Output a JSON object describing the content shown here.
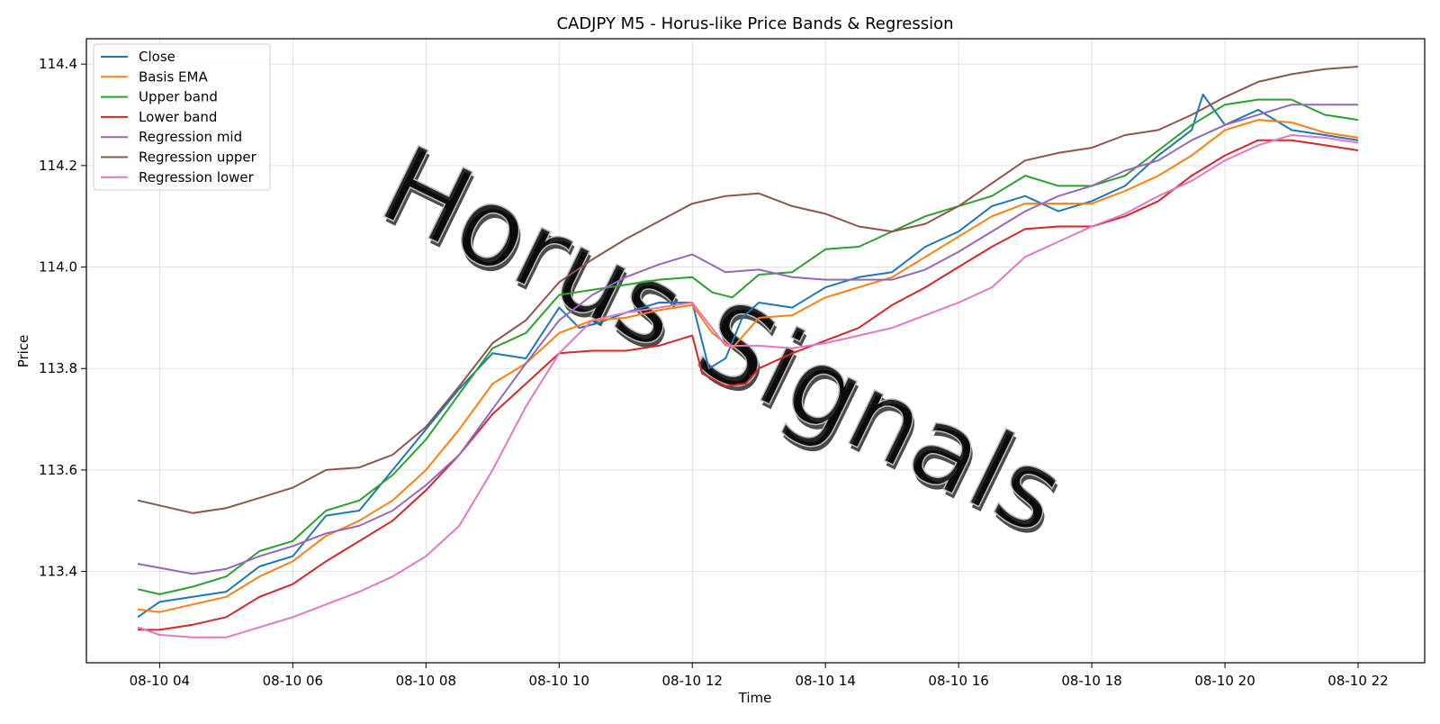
{
  "chart_data": {
    "type": "line",
    "title": "CADJPY M5 - Horus-like Price Bands & Regression",
    "xlabel": "Time",
    "ylabel": "Price",
    "watermark": "Horus Signals",
    "x_ticks": [
      "08-10 04",
      "08-10 06",
      "08-10 08",
      "08-10 10",
      "08-10 12",
      "08-10 14",
      "08-10 16",
      "08-10 18",
      "08-10 20",
      "08-10 22"
    ],
    "y_ticks": [
      "113.4",
      "113.6",
      "113.8",
      "114.0",
      "114.2",
      "114.4"
    ],
    "xlim_hours": [
      2.9,
      23.0
    ],
    "ylim": [
      113.22,
      114.45
    ],
    "grid": true,
    "legend_position": "upper-left",
    "series": [
      {
        "name": "Close",
        "color": "#1f77b4",
        "x": [
          3.67,
          4,
          4.5,
          5,
          5.5,
          6,
          6.5,
          7,
          7.5,
          8,
          8.5,
          9,
          9.5,
          10,
          10.3,
          10.6,
          11,
          11.5,
          12,
          12.25,
          12.5,
          12.75,
          13,
          13.5,
          14,
          14.5,
          15,
          15.5,
          16,
          16.5,
          17,
          17.5,
          18,
          18.5,
          19,
          19.5,
          19.67,
          20,
          20.5,
          21,
          21.5,
          22
        ],
        "y": [
          113.31,
          113.34,
          113.35,
          113.36,
          113.41,
          113.43,
          113.51,
          113.52,
          113.6,
          113.68,
          113.76,
          113.83,
          113.82,
          113.92,
          113.88,
          113.89,
          113.91,
          113.93,
          113.93,
          113.8,
          113.82,
          113.9,
          113.93,
          113.92,
          113.96,
          113.98,
          113.99,
          114.04,
          114.07,
          114.12,
          114.14,
          114.11,
          114.13,
          114.16,
          114.22,
          114.27,
          114.34,
          114.28,
          114.31,
          114.27,
          114.26,
          114.25
        ]
      },
      {
        "name": "Basis EMA",
        "color": "#ff7f0e",
        "x": [
          3.67,
          4,
          4.5,
          5,
          5.5,
          6,
          6.5,
          7,
          7.5,
          8,
          8.5,
          9,
          9.5,
          10,
          10.5,
          11,
          11.5,
          12,
          12.3,
          12.6,
          13,
          13.5,
          14,
          14.5,
          15,
          15.5,
          16,
          16.5,
          17,
          17.5,
          18,
          18.5,
          19,
          19.5,
          20,
          20.5,
          21,
          21.5,
          22
        ],
        "y": [
          113.325,
          113.32,
          113.335,
          113.35,
          113.39,
          113.42,
          113.47,
          113.5,
          113.54,
          113.6,
          113.68,
          113.77,
          113.81,
          113.87,
          113.895,
          113.9,
          113.915,
          113.925,
          113.87,
          113.84,
          113.9,
          113.905,
          113.94,
          113.96,
          113.98,
          114.02,
          114.06,
          114.1,
          114.125,
          114.125,
          114.125,
          114.15,
          114.18,
          114.22,
          114.27,
          114.29,
          114.285,
          114.265,
          114.255
        ]
      },
      {
        "name": "Upper band",
        "color": "#2ca02c",
        "x": [
          3.67,
          4,
          4.5,
          5,
          5.5,
          6,
          6.5,
          7,
          7.5,
          8,
          8.5,
          9,
          9.5,
          10,
          10.5,
          11,
          11.5,
          12,
          12.3,
          12.6,
          13,
          13.5,
          14,
          14.5,
          15,
          15.5,
          16,
          16.5,
          17,
          17.5,
          18,
          18.5,
          19,
          19.5,
          20,
          20.5,
          21,
          21.5,
          22
        ],
        "y": [
          113.365,
          113.355,
          113.37,
          113.39,
          113.44,
          113.46,
          113.52,
          113.54,
          113.59,
          113.66,
          113.75,
          113.84,
          113.87,
          113.945,
          113.955,
          113.965,
          113.975,
          113.98,
          113.95,
          113.94,
          113.985,
          113.99,
          114.035,
          114.04,
          114.07,
          114.1,
          114.12,
          114.14,
          114.18,
          114.16,
          114.16,
          114.18,
          114.23,
          114.28,
          114.32,
          114.33,
          114.33,
          114.3,
          114.29
        ]
      },
      {
        "name": "Lower band",
        "color": "#d62728",
        "x": [
          3.67,
          4,
          4.5,
          5,
          5.5,
          6,
          6.5,
          7,
          7.5,
          8,
          8.5,
          9,
          9.5,
          10,
          10.5,
          11,
          11.5,
          12,
          12.15,
          12.5,
          12.8,
          13,
          13.5,
          14,
          14.5,
          15,
          15.5,
          16,
          16.5,
          17,
          17.5,
          18,
          18.5,
          19,
          19.5,
          20,
          20.5,
          21,
          21.5,
          22
        ],
        "y": [
          113.285,
          113.285,
          113.295,
          113.31,
          113.35,
          113.375,
          113.42,
          113.46,
          113.5,
          113.56,
          113.63,
          113.71,
          113.77,
          113.83,
          113.835,
          113.835,
          113.845,
          113.865,
          113.79,
          113.765,
          113.77,
          113.8,
          113.83,
          113.855,
          113.88,
          113.925,
          113.96,
          114.0,
          114.04,
          114.075,
          114.08,
          114.08,
          114.1,
          114.13,
          114.18,
          114.22,
          114.25,
          114.25,
          114.24,
          114.23
        ]
      },
      {
        "name": "Regression mid",
        "color": "#9467bd",
        "x": [
          3.67,
          4.5,
          5,
          5.5,
          6,
          6.5,
          7,
          7.5,
          8,
          8.5,
          9,
          9.5,
          10,
          10.5,
          11,
          11.5,
          12,
          12.5,
          13,
          13.5,
          14,
          14.5,
          15,
          15.5,
          16,
          16.5,
          17,
          17.5,
          18,
          18.5,
          19,
          19.5,
          20,
          20.5,
          21,
          21.5,
          22
        ],
        "y": [
          113.415,
          113.395,
          113.405,
          113.43,
          113.45,
          113.475,
          113.49,
          113.52,
          113.57,
          113.63,
          113.72,
          113.81,
          113.895,
          113.945,
          113.98,
          114.005,
          114.025,
          113.99,
          113.995,
          113.98,
          113.975,
          113.975,
          113.975,
          113.995,
          114.03,
          114.07,
          114.11,
          114.14,
          114.16,
          114.19,
          114.21,
          114.25,
          114.28,
          114.3,
          114.32,
          114.32,
          114.32
        ]
      },
      {
        "name": "Regression upper",
        "color": "#8c564b",
        "x": [
          3.67,
          4,
          4.5,
          5,
          5.5,
          6,
          6.5,
          7,
          7.5,
          8,
          8.5,
          9,
          9.5,
          10,
          10.5,
          11,
          11.5,
          12,
          12.5,
          13,
          13.5,
          14,
          14.5,
          15,
          15.5,
          16,
          16.5,
          17,
          17.5,
          18,
          18.5,
          19,
          19.5,
          20,
          20.5,
          21,
          21.5,
          22
        ],
        "y": [
          113.54,
          113.53,
          113.515,
          113.525,
          113.545,
          113.565,
          113.6,
          113.605,
          113.63,
          113.685,
          113.765,
          113.85,
          113.895,
          113.97,
          114.015,
          114.055,
          114.09,
          114.125,
          114.14,
          114.145,
          114.12,
          114.105,
          114.08,
          114.07,
          114.085,
          114.12,
          114.165,
          114.21,
          114.225,
          114.235,
          114.26,
          114.27,
          114.3,
          114.335,
          114.365,
          114.38,
          114.39,
          114.395
        ]
      },
      {
        "name": "Regression lower",
        "color": "#e377c2",
        "x": [
          3.67,
          4,
          4.5,
          5,
          5.5,
          6,
          6.5,
          7,
          7.5,
          8,
          8.5,
          9,
          9.5,
          10,
          10.5,
          11,
          11.5,
          12,
          12.5,
          13,
          13.5,
          14,
          14.5,
          15,
          15.5,
          16,
          16.5,
          17,
          17.5,
          18,
          18.5,
          19,
          19.5,
          20,
          20.5,
          21,
          21.5,
          22
        ],
        "y": [
          113.29,
          113.275,
          113.27,
          113.27,
          113.29,
          113.31,
          113.335,
          113.36,
          113.39,
          113.43,
          113.49,
          113.6,
          113.725,
          113.83,
          113.895,
          113.91,
          113.92,
          113.93,
          113.845,
          113.845,
          113.84,
          113.85,
          113.865,
          113.88,
          113.905,
          113.93,
          113.96,
          114.02,
          114.05,
          114.08,
          114.105,
          114.14,
          114.17,
          114.21,
          114.24,
          114.26,
          114.255,
          114.245
        ]
      }
    ]
  }
}
